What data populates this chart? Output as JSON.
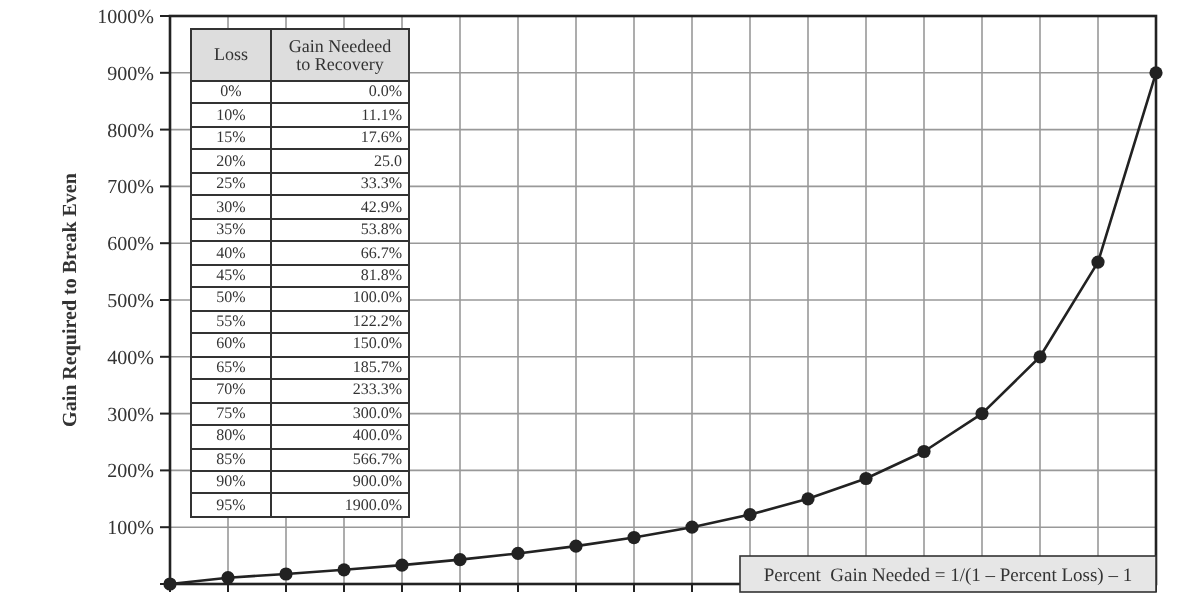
{
  "chart_data": {
    "type": "line",
    "ylabel": "Gain Required to Break Even",
    "categories": [
      null,
      null,
      null,
      null,
      null,
      null,
      null,
      null,
      null,
      null,
      null,
      null,
      null,
      null,
      null,
      null,
      null,
      null
    ],
    "series": [
      {
        "color": "#222222",
        "values": [
          0,
          11.1,
          17.6,
          25,
          33.3,
          42.9,
          53.8,
          66.7,
          81.8,
          100,
          122.2,
          150,
          185.7,
          233.3,
          300,
          400,
          566.7,
          900
        ]
      }
    ],
    "ylim": [
      0,
      1000
    ],
    "yticks": [
      {
        "value": 100,
        "label": "100%"
      },
      {
        "value": 200,
        "label": "200%"
      },
      {
        "value": 300,
        "label": "300%"
      },
      {
        "value": 400,
        "label": "400%"
      },
      {
        "value": 500,
        "label": "500%"
      },
      {
        "value": 600,
        "label": "600%"
      },
      {
        "value": 700,
        "label": "700%"
      },
      {
        "value": 800,
        "label": "800%"
      },
      {
        "value": 900,
        "label": "900%"
      },
      {
        "value": 1000,
        "label": "1000%"
      }
    ],
    "tick_labels": "y",
    "grid": true,
    "marker": "circle",
    "line_style": "solid",
    "annotations": [
      "Percent  Gain Needed = 1/(1 – Percent Loss) – 1",
      "Loss",
      "Gain Needeed to Recovery",
      "0%",
      "0.0%",
      "10%",
      "11.1%",
      "15%",
      "17.6%",
      "20%",
      "25.0",
      "25%",
      "33.3%",
      "30%",
      "42.9%",
      "35%",
      "53.8%",
      "40%",
      "66.7%",
      "45%",
      "81.8%",
      "50%",
      "100.0%",
      "55%",
      "122.2%",
      "60%",
      "150.0%",
      "65%",
      "185.7%",
      "70%",
      "233.3%",
      "75%",
      "300.0%",
      "80%",
      "400.0%",
      "85%",
      "566.7%",
      "90%",
      "900.0%",
      "95%",
      "1900.0%"
    ]
  }
}
